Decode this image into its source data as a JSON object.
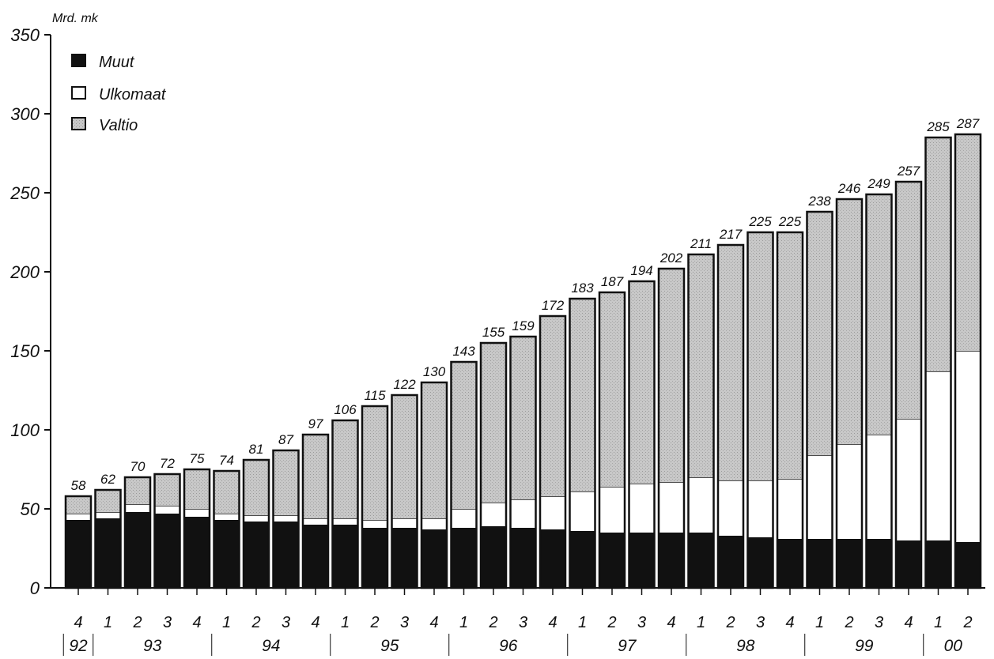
{
  "chart_data": {
    "type": "bar",
    "stacked": true,
    "unit_label": "Mrd. mk",
    "ylim": [
      0,
      350
    ],
    "yticks": [
      0,
      50,
      100,
      150,
      200,
      250,
      300,
      350
    ],
    "grid": false,
    "legend_position": "top-left",
    "categories": [
      "4",
      "1",
      "2",
      "3",
      "4",
      "1",
      "2",
      "3",
      "4",
      "1",
      "2",
      "3",
      "4",
      "1",
      "2",
      "3",
      "4",
      "1",
      "2",
      "3",
      "4",
      "1",
      "2",
      "3",
      "4",
      "1",
      "2",
      "3",
      "4",
      "1",
      "2"
    ],
    "years": [
      {
        "label": "92",
        "quarters": 1
      },
      {
        "label": "93",
        "quarters": 4
      },
      {
        "label": "94",
        "quarters": 4
      },
      {
        "label": "95",
        "quarters": 4
      },
      {
        "label": "96",
        "quarters": 4
      },
      {
        "label": "97",
        "quarters": 4
      },
      {
        "label": "98",
        "quarters": 4
      },
      {
        "label": "99",
        "quarters": 4
      },
      {
        "label": "00",
        "quarters": 2
      }
    ],
    "totals": [
      58,
      62,
      70,
      72,
      75,
      74,
      81,
      87,
      97,
      106,
      115,
      122,
      130,
      143,
      155,
      159,
      172,
      183,
      187,
      194,
      202,
      211,
      217,
      225,
      225,
      238,
      246,
      249,
      257,
      285,
      287
    ],
    "series": [
      {
        "name": "Muut",
        "color": "#111111",
        "values": [
          43,
          44,
          48,
          47,
          45,
          43,
          42,
          42,
          40,
          40,
          38,
          38,
          37,
          38,
          39,
          38,
          37,
          36,
          35,
          35,
          35,
          35,
          33,
          32,
          31,
          31,
          31,
          31,
          30,
          30,
          29
        ]
      },
      {
        "name": "Ulkomaat",
        "color": "#ffffff",
        "values": [
          4,
          4,
          5,
          5,
          5,
          4,
          4,
          4,
          4,
          4,
          5,
          6,
          7,
          12,
          15,
          18,
          21,
          25,
          29,
          31,
          32,
          35,
          35,
          36,
          38,
          53,
          60,
          66,
          77,
          107,
          121
        ]
      },
      {
        "name": "Valtio",
        "color": "#c8c8c8",
        "values": [
          11,
          14,
          17,
          20,
          25,
          27,
          35,
          41,
          53,
          62,
          72,
          78,
          86,
          93,
          101,
          103,
          114,
          122,
          123,
          128,
          135,
          141,
          149,
          157,
          156,
          154,
          155,
          152,
          150,
          148,
          137
        ]
      }
    ]
  }
}
